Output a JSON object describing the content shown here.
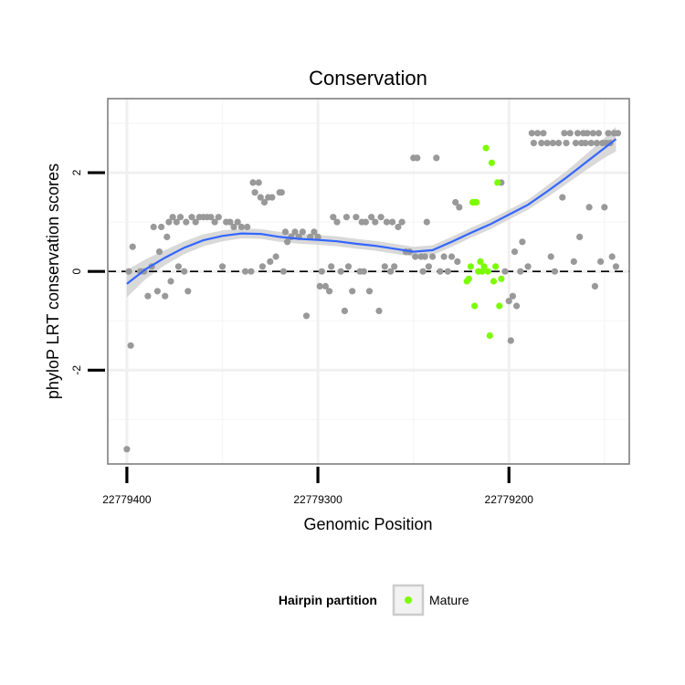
{
  "chart_data": {
    "type": "scatter",
    "title": "Conservation",
    "xlabel": "Genomic Position",
    "ylabel": "phyloP LRT conservation scores",
    "xlim": [
      22779410,
      22779137
    ],
    "ylim": [
      -3.9,
      3.5
    ],
    "x_reversed": true,
    "x_ticks": [
      22779400,
      22779300,
      22779200
    ],
    "x_tick_labels": [
      "22779400",
      "22779300",
      "22779200"
    ],
    "y_ticks": [
      2,
      0,
      -2
    ],
    "y_tick_labels": [
      "2",
      "0",
      "-2"
    ],
    "grid": true,
    "reference_line": {
      "y": 0,
      "style": "dashed"
    },
    "colors": {
      "other": "#999999",
      "mature": "#7cfc00",
      "smooth": "#3366ff",
      "ribbon": "#cccccc",
      "panel_border": "#7f7f7f"
    },
    "legend": {
      "title": "Hairpin partition",
      "placement": "bottom",
      "entries": [
        {
          "label": "Mature",
          "color": "#7cfc00"
        }
      ]
    },
    "smooth": {
      "x": [
        22779400,
        22779390,
        22779380,
        22779370,
        22779360,
        22779350,
        22779340,
        22779330,
        22779320,
        22779310,
        22779300,
        22779290,
        22779280,
        22779270,
        22779260,
        22779250,
        22779240,
        22779230,
        22779220,
        22779210,
        22779200,
        22779190,
        22779180,
        22779170,
        22779160,
        22779150,
        22779144
      ],
      "y": [
        -0.25,
        0.05,
        0.28,
        0.48,
        0.63,
        0.72,
        0.77,
        0.76,
        0.7,
        0.66,
        0.64,
        0.61,
        0.56,
        0.52,
        0.46,
        0.4,
        0.43,
        0.6,
        0.78,
        0.95,
        1.15,
        1.35,
        1.62,
        1.9,
        2.2,
        2.5,
        2.68
      ],
      "se": [
        0.28,
        0.2,
        0.15,
        0.13,
        0.12,
        0.11,
        0.1,
        0.1,
        0.1,
        0.1,
        0.1,
        0.1,
        0.1,
        0.1,
        0.1,
        0.1,
        0.1,
        0.1,
        0.1,
        0.1,
        0.1,
        0.1,
        0.12,
        0.13,
        0.16,
        0.2,
        0.25
      ]
    },
    "series": [
      {
        "name": "other",
        "color": "#999999",
        "points": [
          [
            22779400,
            -3.6
          ],
          [
            22779398,
            -1.5
          ],
          [
            22779399,
            0.0
          ],
          [
            22779397,
            0.5
          ],
          [
            22779393,
            0.0
          ],
          [
            22779391,
            0.0
          ],
          [
            22779389,
            -0.5
          ],
          [
            22779387,
            0.1
          ],
          [
            22779386,
            0.9
          ],
          [
            22779384,
            -0.4
          ],
          [
            22779383,
            0.4
          ],
          [
            22779382,
            0.9
          ],
          [
            22779380,
            -0.5
          ],
          [
            22779379,
            0.7
          ],
          [
            22779378,
            1.0
          ],
          [
            22779377,
            -0.2
          ],
          [
            22779376,
            1.1
          ],
          [
            22779374,
            1.0
          ],
          [
            22779373,
            0.1
          ],
          [
            22779372,
            1.1
          ],
          [
            22779370,
            0.0
          ],
          [
            22779369,
            1.0
          ],
          [
            22779368,
            -0.4
          ],
          [
            22779366,
            1.1
          ],
          [
            22779364,
            1.0
          ],
          [
            22779362,
            1.1
          ],
          [
            22779360,
            1.1
          ],
          [
            22779358,
            1.1
          ],
          [
            22779356,
            1.1
          ],
          [
            22779354,
            1.0
          ],
          [
            22779352,
            1.1
          ],
          [
            22779350,
            0.1
          ],
          [
            22779348,
            1.0
          ],
          [
            22779346,
            1.0
          ],
          [
            22779344,
            0.9
          ],
          [
            22779342,
            1.0
          ],
          [
            22779340,
            0.9
          ],
          [
            22779338,
            0.0
          ],
          [
            22779337,
            0.9
          ],
          [
            22779335,
            0.0
          ],
          [
            22779334,
            1.8
          ],
          [
            22779333,
            1.6
          ],
          [
            22779331,
            1.8
          ],
          [
            22779330,
            1.5
          ],
          [
            22779329,
            0.1
          ],
          [
            22779328,
            1.4
          ],
          [
            22779326,
            1.5
          ],
          [
            22779325,
            0.2
          ],
          [
            22779324,
            1.5
          ],
          [
            22779322,
            0.3
          ],
          [
            22779320,
            1.6
          ],
          [
            22779319,
            1.6
          ],
          [
            22779318,
            0.0
          ],
          [
            22779317,
            0.8
          ],
          [
            22779316,
            0.6
          ],
          [
            22779314,
            0.7
          ],
          [
            22779312,
            0.8
          ],
          [
            22779310,
            0.7
          ],
          [
            22779308,
            0.8
          ],
          [
            22779306,
            -0.9
          ],
          [
            22779304,
            0.7
          ],
          [
            22779302,
            0.8
          ],
          [
            22779300,
            0.7
          ],
          [
            22779299,
            -0.3
          ],
          [
            22779298,
            0.0
          ],
          [
            22779296,
            -0.3
          ],
          [
            22779294,
            -0.4
          ],
          [
            22779293,
            0.1
          ],
          [
            22779292,
            1.1
          ],
          [
            22779290,
            1.0
          ],
          [
            22779288,
            0.0
          ],
          [
            22779286,
            -0.8
          ],
          [
            22779285,
            1.1
          ],
          [
            22779284,
            0.1
          ],
          [
            22779282,
            -0.4
          ],
          [
            22779280,
            1.1
          ],
          [
            22779278,
            0.0
          ],
          [
            22779277,
            1.0
          ],
          [
            22779276,
            0.0
          ],
          [
            22779275,
            1.0
          ],
          [
            22779273,
            -0.4
          ],
          [
            22779272,
            1.1
          ],
          [
            22779270,
            1.0
          ],
          [
            22779268,
            -0.8
          ],
          [
            22779267,
            1.1
          ],
          [
            22779265,
            0.1
          ],
          [
            22779264,
            1.0
          ],
          [
            22779262,
            0.0
          ],
          [
            22779261,
            1.0
          ],
          [
            22779260,
            0.1
          ],
          [
            22779258,
            0.9
          ],
          [
            22779256,
            1.0
          ],
          [
            22779254,
            0.4
          ],
          [
            22779252,
            0.4
          ],
          [
            22779250,
            2.3
          ],
          [
            22779249,
            0.3
          ],
          [
            22779248,
            2.3
          ],
          [
            22779246,
            0.3
          ],
          [
            22779245,
            0.0
          ],
          [
            22779244,
            0.3
          ],
          [
            22779243,
            1.0
          ],
          [
            22779242,
            0.1
          ],
          [
            22779240,
            0.3
          ],
          [
            22779238,
            2.3
          ],
          [
            22779236,
            0.0
          ],
          [
            22779234,
            0.3
          ],
          [
            22779232,
            0.0
          ],
          [
            22779230,
            0.3
          ],
          [
            22779228,
            1.4
          ],
          [
            22779227,
            0.2
          ],
          [
            22779226,
            1.3
          ],
          [
            22779204,
            1.8
          ],
          [
            22779202,
            0.0
          ],
          [
            22779200,
            -0.6
          ],
          [
            22779199,
            -1.4
          ],
          [
            22779198,
            -0.5
          ],
          [
            22779197,
            0.4
          ],
          [
            22779196,
            -0.7
          ],
          [
            22779194,
            0.0
          ],
          [
            22779193,
            0.6
          ],
          [
            22779190,
            0.1
          ],
          [
            22779188,
            2.8
          ],
          [
            22779187,
            2.6
          ],
          [
            22779185,
            2.8
          ],
          [
            22779183,
            2.6
          ],
          [
            22779182,
            2.8
          ],
          [
            22779180,
            2.6
          ],
          [
            22779178,
            0.3
          ],
          [
            22779177,
            2.6
          ],
          [
            22779176,
            0.0
          ],
          [
            22779174,
            2.6
          ],
          [
            22779172,
            1.5
          ],
          [
            22779171,
            2.8
          ],
          [
            22779170,
            2.6
          ],
          [
            22779168,
            2.8
          ],
          [
            22779166,
            0.2
          ],
          [
            22779165,
            2.6
          ],
          [
            22779164,
            2.8
          ],
          [
            22779163,
            0.7
          ],
          [
            22779162,
            2.6
          ],
          [
            22779161,
            2.8
          ],
          [
            22779160,
            2.6
          ],
          [
            22779159,
            2.8
          ],
          [
            22779158,
            1.3
          ],
          [
            22779157,
            2.6
          ],
          [
            22779156,
            2.8
          ],
          [
            22779155,
            -0.3
          ],
          [
            22779154,
            2.6
          ],
          [
            22779153,
            2.8
          ],
          [
            22779152,
            0.2
          ],
          [
            22779151,
            2.6
          ],
          [
            22779150,
            1.3
          ],
          [
            22779149,
            2.6
          ],
          [
            22779148,
            2.8
          ],
          [
            22779147,
            2.6
          ],
          [
            22779146,
            0.3
          ],
          [
            22779145,
            2.8
          ],
          [
            22779144,
            0.1
          ],
          [
            22779143,
            2.8
          ]
        ]
      },
      {
        "name": "Mature",
        "color": "#7cfc00",
        "points": [
          [
            22779222,
            -0.2
          ],
          [
            22779221,
            -0.15
          ],
          [
            22779220,
            0.1
          ],
          [
            22779219,
            1.4
          ],
          [
            22779218,
            1.4
          ],
          [
            22779218,
            -0.7
          ],
          [
            22779217,
            1.4
          ],
          [
            22779216,
            0.0
          ],
          [
            22779215,
            0.2
          ],
          [
            22779214,
            0.0
          ],
          [
            22779213,
            0.1
          ],
          [
            22779212,
            2.5
          ],
          [
            22779211,
            0.0
          ],
          [
            22779210,
            -1.3
          ],
          [
            22779209,
            2.2
          ],
          [
            22779208,
            -0.2
          ],
          [
            22779207,
            0.1
          ],
          [
            22779206,
            1.8
          ],
          [
            22779205,
            -0.7
          ],
          [
            22779204,
            -0.15
          ]
        ]
      }
    ]
  }
}
